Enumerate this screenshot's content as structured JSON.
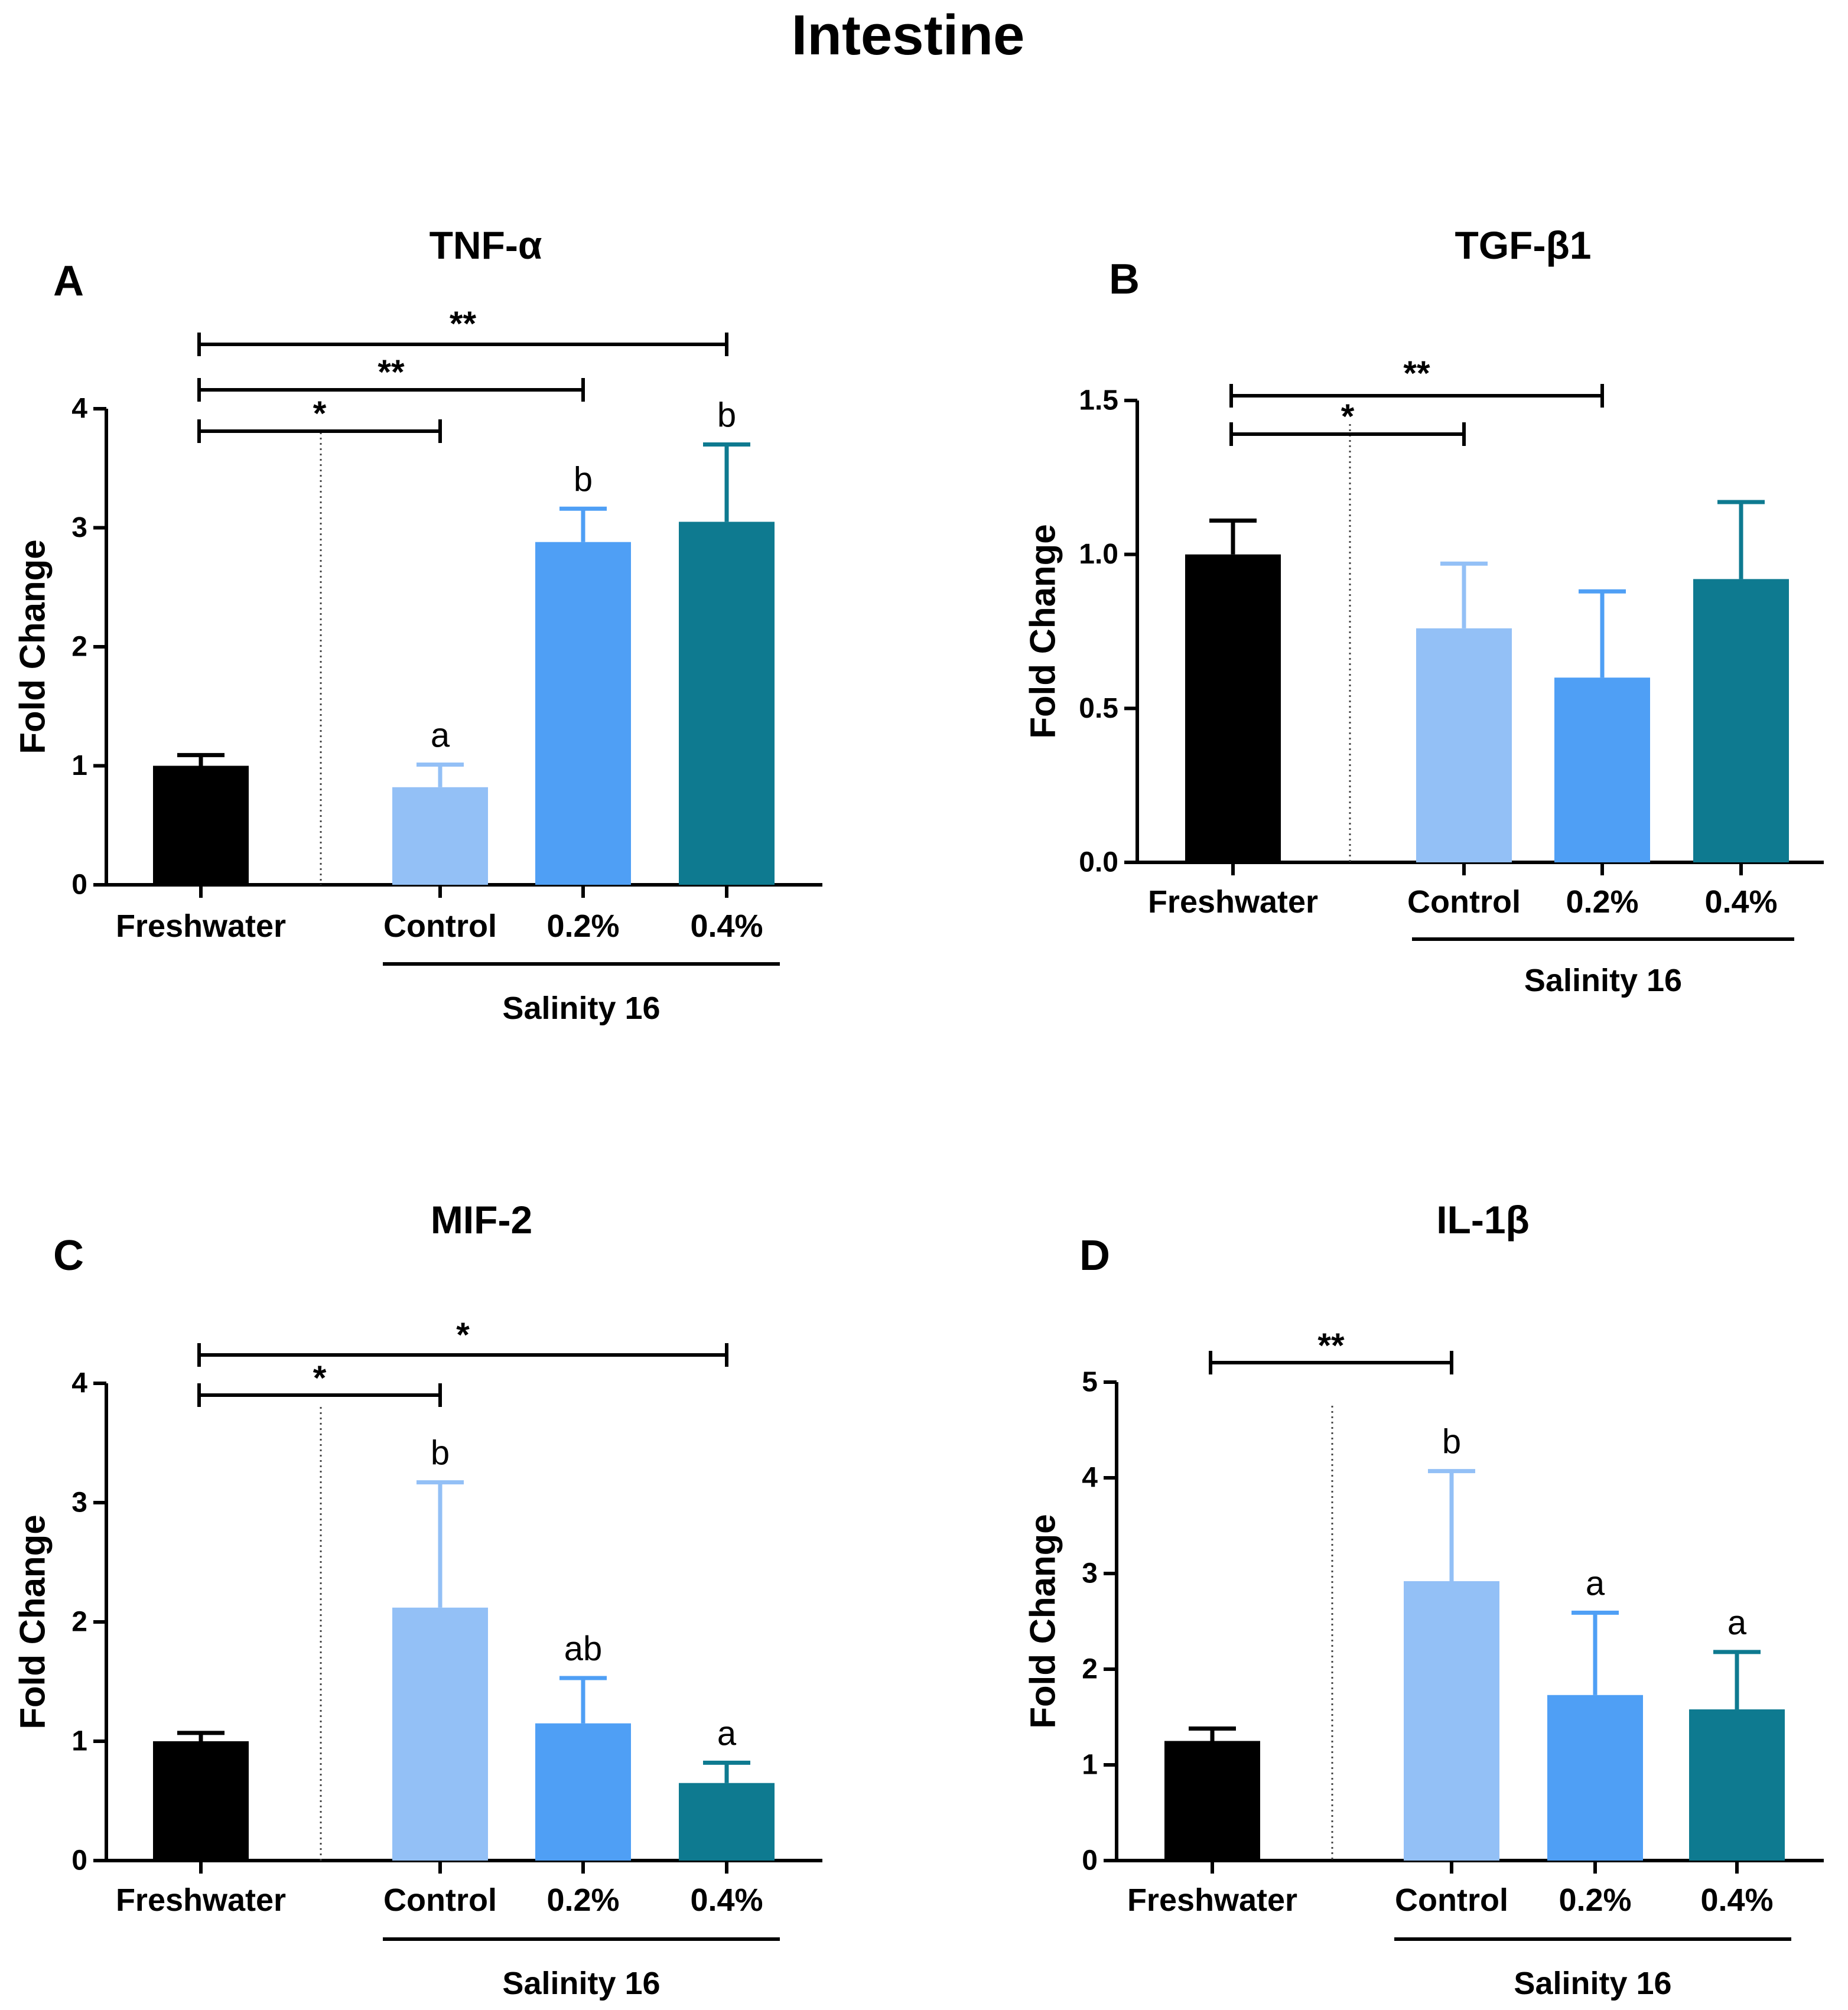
{
  "figure_title": "Intestine",
  "chart_data": [
    {
      "type": "bar",
      "panel": "A",
      "title": "TNF-α",
      "ylabel": "Fold Change",
      "xlabel": "",
      "ylim": [
        0,
        4
      ],
      "yticks": [
        "0",
        "1",
        "2",
        "3",
        "4"
      ],
      "categories": [
        "Freshwater",
        "Control",
        "0.2%",
        "0.4%"
      ],
      "group_label": "Salinity 16",
      "values": [
        1.0,
        0.82,
        2.88,
        3.05
      ],
      "errors": [
        0.09,
        0.19,
        0.28,
        0.65
      ],
      "colors": [
        "#000000",
        "#93c0f6",
        "#4f9ff5",
        "#0e7a90"
      ],
      "letters": [
        "",
        "a",
        "b",
        "b"
      ],
      "comparisons": [
        {
          "from": 0,
          "to": 1,
          "label": "*"
        },
        {
          "from": 0,
          "to": 2,
          "label": "**"
        },
        {
          "from": 0,
          "to": 3,
          "label": "**"
        }
      ]
    },
    {
      "type": "bar",
      "panel": "B",
      "title": "TGF-β1",
      "ylabel": "Fold Change",
      "xlabel": "",
      "ylim": [
        0,
        1.5
      ],
      "yticks": [
        "0.0",
        "0.5",
        "1.0",
        "1.5"
      ],
      "categories": [
        "Freshwater",
        "Control",
        "0.2%",
        "0.4%"
      ],
      "group_label": "Salinity 16",
      "values": [
        1.0,
        0.76,
        0.6,
        0.92
      ],
      "errors": [
        0.11,
        0.21,
        0.28,
        0.25
      ],
      "colors": [
        "#000000",
        "#93c0f6",
        "#4f9ff5",
        "#0e7a90"
      ],
      "letters": [
        "",
        "",
        "",
        ""
      ],
      "comparisons": [
        {
          "from": 0,
          "to": 1,
          "label": "*"
        },
        {
          "from": 0,
          "to": 2,
          "label": "**"
        }
      ]
    },
    {
      "type": "bar",
      "panel": "C",
      "title": "MIF-2",
      "ylabel": "Fold Change",
      "xlabel": "",
      "ylim": [
        0,
        4
      ],
      "yticks": [
        "0",
        "1",
        "2",
        "3",
        "4"
      ],
      "categories": [
        "Freshwater",
        "Control",
        "0.2%",
        "0.4%"
      ],
      "group_label": "Salinity 16",
      "values": [
        1.0,
        2.12,
        1.15,
        0.65
      ],
      "errors": [
        0.07,
        1.05,
        0.38,
        0.17
      ],
      "colors": [
        "#000000",
        "#93c0f6",
        "#4f9ff5",
        "#0e7a90"
      ],
      "letters": [
        "",
        "b",
        "ab",
        "a"
      ],
      "comparisons": [
        {
          "from": 0,
          "to": 1,
          "label": "*"
        },
        {
          "from": 0,
          "to": 3,
          "label": "*"
        }
      ]
    },
    {
      "type": "bar",
      "panel": "D",
      "title": "IL-1β",
      "ylabel": "Fold Change",
      "xlabel": "",
      "ylim": [
        0,
        5
      ],
      "yticks": [
        "0",
        "1",
        "2",
        "3",
        "4",
        "5"
      ],
      "categories": [
        "Freshwater",
        "Control",
        "0.2%",
        "0.4%"
      ],
      "group_label": "Salinity 16",
      "values": [
        1.25,
        2.92,
        1.73,
        1.58
      ],
      "errors": [
        0.13,
        1.15,
        0.86,
        0.6
      ],
      "colors": [
        "#000000",
        "#93c0f6",
        "#4f9ff5",
        "#0e7a90"
      ],
      "letters": [
        "",
        "b",
        "a",
        "a"
      ],
      "comparisons": [
        {
          "from": 0,
          "to": 1,
          "label": "**"
        }
      ]
    }
  ]
}
